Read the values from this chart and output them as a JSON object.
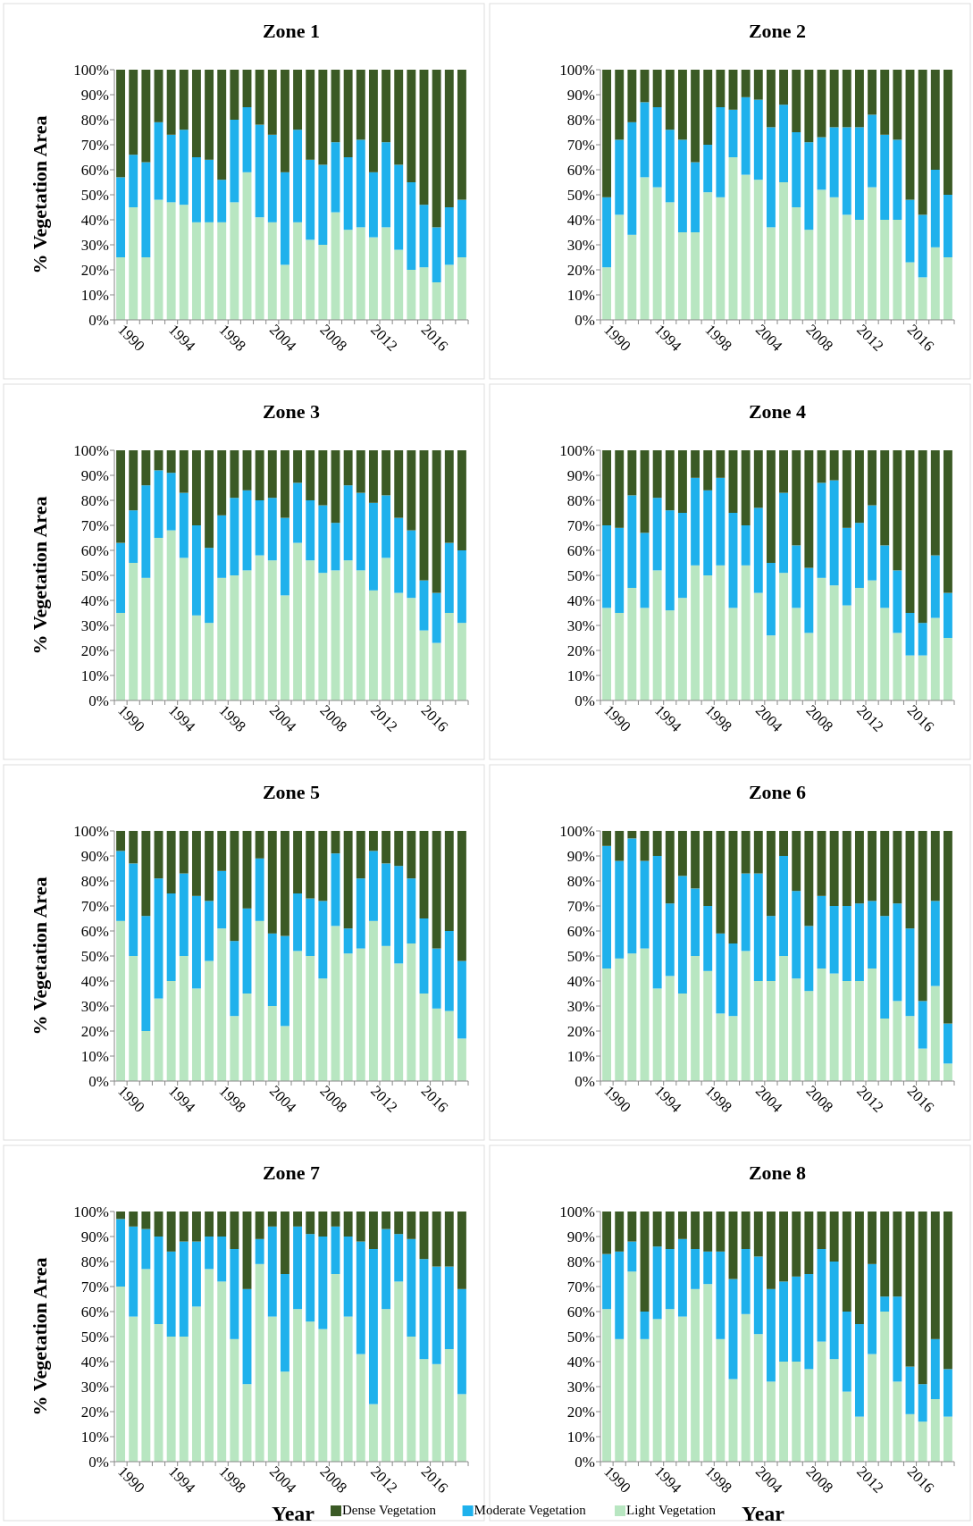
{
  "chart_data": [
    {
      "type": "bar",
      "stacked": true,
      "title": "Zone 1",
      "ylabel": "% Vegetation Area",
      "categories": [
        "1990",
        null,
        null,
        null,
        "1994",
        null,
        null,
        null,
        "1998",
        null,
        null,
        null,
        "2004",
        null,
        null,
        null,
        "2008",
        null,
        null,
        null,
        "2012",
        null,
        null,
        null,
        "2016",
        null,
        null,
        null
      ],
      "ylim": [
        0,
        100
      ],
      "yticks": [
        {
          "value": 0,
          "label": "0%"
        },
        {
          "value": 10,
          "label": "10%"
        },
        {
          "value": 20,
          "label": "20%"
        },
        {
          "value": 30,
          "label": "30%"
        },
        {
          "value": 40,
          "label": "40%"
        },
        {
          "value": 50,
          "label": "50%"
        },
        {
          "value": 60,
          "label": "60%"
        },
        {
          "value": 70,
          "label": "70%"
        },
        {
          "value": 80,
          "label": "80%"
        },
        {
          "value": 90,
          "label": "90%"
        },
        {
          "value": 100,
          "label": "100%"
        }
      ],
      "series": [
        {
          "color": "#b8e6c1",
          "values": [
            25,
            45,
            25,
            48,
            47,
            46,
            39,
            39,
            39,
            47,
            59,
            41,
            39,
            22,
            39,
            32,
            30,
            43,
            36,
            37,
            33,
            37,
            28,
            20,
            21,
            15,
            22,
            25
          ]
        },
        {
          "color": "#1fb1ec",
          "values": [
            32,
            21,
            38,
            31,
            27,
            30,
            26,
            25,
            17,
            33,
            26,
            37,
            35,
            37,
            37,
            32,
            32,
            28,
            29,
            35,
            26,
            34,
            34,
            35,
            25,
            22,
            23,
            23
          ]
        },
        {
          "color": "#3b5a25",
          "values": [
            43,
            34,
            37,
            21,
            26,
            24,
            35,
            36,
            44,
            20,
            15,
            22,
            26,
            41,
            24,
            36,
            38,
            29,
            35,
            28,
            41,
            29,
            38,
            45,
            54,
            63,
            55,
            52
          ]
        }
      ]
    },
    {
      "type": "bar",
      "stacked": true,
      "title": "Zone 2",
      "categories": [
        "1990",
        null,
        null,
        null,
        "1994",
        null,
        null,
        null,
        "1998",
        null,
        null,
        null,
        "2004",
        null,
        null,
        null,
        "2008",
        null,
        null,
        null,
        "2012",
        null,
        null,
        null,
        "2016",
        null,
        null,
        null
      ],
      "ylim": [
        0,
        100
      ],
      "yticks": [
        {
          "value": 0,
          "label": "0%"
        },
        {
          "value": 10,
          "label": "10%"
        },
        {
          "value": 20,
          "label": "20%"
        },
        {
          "value": 30,
          "label": "30%"
        },
        {
          "value": 40,
          "label": "40%"
        },
        {
          "value": 50,
          "label": "50%"
        },
        {
          "value": 60,
          "label": "60%"
        },
        {
          "value": 70,
          "label": "70%"
        },
        {
          "value": 80,
          "label": "80%"
        },
        {
          "value": 90,
          "label": "90%"
        },
        {
          "value": 100,
          "label": "100%"
        }
      ],
      "series": [
        {
          "color": "#b8e6c1",
          "values": [
            21,
            42,
            34,
            57,
            53,
            47,
            35,
            35,
            51,
            49,
            65,
            58,
            56,
            37,
            55,
            45,
            36,
            52,
            49,
            42,
            40,
            53,
            40,
            40,
            23,
            17,
            29,
            25
          ]
        },
        {
          "color": "#1fb1ec",
          "values": [
            28,
            30,
            45,
            30,
            32,
            29,
            37,
            28,
            19,
            36,
            19,
            31,
            32,
            40,
            31,
            30,
            35,
            21,
            28,
            35,
            37,
            29,
            34,
            32,
            25,
            25,
            31,
            25
          ]
        },
        {
          "color": "#3b5a25",
          "values": [
            51,
            28,
            21,
            13,
            15,
            24,
            28,
            37,
            30,
            15,
            16,
            11,
            12,
            23,
            14,
            25,
            29,
            27,
            23,
            23,
            23,
            18,
            26,
            28,
            52,
            58,
            40,
            50
          ]
        }
      ]
    },
    {
      "type": "bar",
      "stacked": true,
      "title": "Zone 3",
      "ylabel": "% Vegetation Area",
      "categories": [
        "1990",
        null,
        null,
        null,
        "1994",
        null,
        null,
        null,
        "1998",
        null,
        null,
        null,
        "2004",
        null,
        null,
        null,
        "2008",
        null,
        null,
        null,
        "2012",
        null,
        null,
        null,
        "2016",
        null,
        null,
        null
      ],
      "ylim": [
        0,
        100
      ],
      "yticks": [
        {
          "value": 0,
          "label": "0%"
        },
        {
          "value": 10,
          "label": "10%"
        },
        {
          "value": 20,
          "label": "20%"
        },
        {
          "value": 30,
          "label": "30%"
        },
        {
          "value": 40,
          "label": "40%"
        },
        {
          "value": 50,
          "label": "50%"
        },
        {
          "value": 60,
          "label": "60%"
        },
        {
          "value": 70,
          "label": "70%"
        },
        {
          "value": 80,
          "label": "80%"
        },
        {
          "value": 90,
          "label": "90%"
        },
        {
          "value": 100,
          "label": "100%"
        }
      ],
      "series": [
        {
          "color": "#b8e6c1",
          "values": [
            35,
            55,
            49,
            65,
            68,
            57,
            34,
            31,
            49,
            50,
            52,
            58,
            56,
            42,
            63,
            56,
            51,
            52,
            56,
            52,
            44,
            57,
            43,
            41,
            28,
            23,
            35,
            31
          ]
        },
        {
          "color": "#1fb1ec",
          "values": [
            28,
            21,
            37,
            27,
            23,
            26,
            36,
            30,
            25,
            31,
            32,
            22,
            25,
            31,
            24,
            24,
            27,
            19,
            30,
            31,
            35,
            25,
            30,
            27,
            20,
            20,
            28,
            29
          ]
        },
        {
          "color": "#3b5a25",
          "values": [
            37,
            24,
            14,
            8,
            9,
            17,
            30,
            39,
            26,
            19,
            16,
            20,
            19,
            27,
            13,
            20,
            22,
            29,
            14,
            17,
            21,
            18,
            27,
            32,
            52,
            57,
            37,
            40
          ]
        }
      ]
    },
    {
      "type": "bar",
      "stacked": true,
      "title": "Zone 4",
      "categories": [
        "1990",
        null,
        null,
        null,
        "1994",
        null,
        null,
        null,
        "1998",
        null,
        null,
        null,
        "2004",
        null,
        null,
        null,
        "2008",
        null,
        null,
        null,
        "2012",
        null,
        null,
        null,
        "2016",
        null,
        null,
        null
      ],
      "ylim": [
        0,
        100
      ],
      "yticks": [
        {
          "value": 0,
          "label": "0%"
        },
        {
          "value": 10,
          "label": "10%"
        },
        {
          "value": 20,
          "label": "20%"
        },
        {
          "value": 30,
          "label": "30%"
        },
        {
          "value": 40,
          "label": "40%"
        },
        {
          "value": 50,
          "label": "50%"
        },
        {
          "value": 60,
          "label": "60%"
        },
        {
          "value": 70,
          "label": "70%"
        },
        {
          "value": 80,
          "label": "80%"
        },
        {
          "value": 90,
          "label": "90%"
        },
        {
          "value": 100,
          "label": "100%"
        }
      ],
      "series": [
        {
          "color": "#b8e6c1",
          "values": [
            37,
            35,
            45,
            37,
            52,
            36,
            41,
            54,
            50,
            54,
            37,
            54,
            43,
            26,
            51,
            37,
            27,
            49,
            46,
            38,
            45,
            48,
            37,
            27,
            18,
            18,
            33,
            25
          ]
        },
        {
          "color": "#1fb1ec",
          "values": [
            33,
            34,
            37,
            30,
            29,
            40,
            34,
            35,
            34,
            35,
            38,
            16,
            34,
            29,
            32,
            25,
            26,
            38,
            42,
            31,
            26,
            30,
            25,
            25,
            17,
            13,
            25,
            18
          ]
        },
        {
          "color": "#3b5a25",
          "values": [
            30,
            31,
            18,
            33,
            19,
            24,
            25,
            11,
            16,
            11,
            25,
            30,
            23,
            45,
            17,
            38,
            47,
            13,
            12,
            31,
            29,
            22,
            38,
            48,
            65,
            69,
            42,
            57
          ]
        }
      ]
    },
    {
      "type": "bar",
      "stacked": true,
      "title": "Zone 5",
      "ylabel": "% Vegetation Area",
      "categories": [
        "1990",
        null,
        null,
        null,
        "1994",
        null,
        null,
        null,
        "1998",
        null,
        null,
        null,
        "2004",
        null,
        null,
        null,
        "2008",
        null,
        null,
        null,
        "2012",
        null,
        null,
        null,
        "2016",
        null,
        null,
        null
      ],
      "ylim": [
        0,
        100
      ],
      "yticks": [
        {
          "value": 0,
          "label": "0%"
        },
        {
          "value": 10,
          "label": "10%"
        },
        {
          "value": 20,
          "label": "20%"
        },
        {
          "value": 30,
          "label": "30%"
        },
        {
          "value": 40,
          "label": "40%"
        },
        {
          "value": 50,
          "label": "50%"
        },
        {
          "value": 60,
          "label": "60%"
        },
        {
          "value": 70,
          "label": "70%"
        },
        {
          "value": 80,
          "label": "80%"
        },
        {
          "value": 90,
          "label": "90%"
        },
        {
          "value": 100,
          "label": "100%"
        }
      ],
      "series": [
        {
          "color": "#b8e6c1",
          "values": [
            64,
            50,
            20,
            33,
            40,
            50,
            37,
            48,
            61,
            26,
            35,
            64,
            30,
            22,
            52,
            50,
            41,
            62,
            51,
            53,
            64,
            54,
            47,
            55,
            35,
            29,
            28,
            17
          ]
        },
        {
          "color": "#1fb1ec",
          "values": [
            28,
            37,
            46,
            48,
            35,
            33,
            37,
            24,
            23,
            30,
            34,
            25,
            29,
            36,
            23,
            23,
            31,
            29,
            10,
            28,
            28,
            33,
            39,
            26,
            30,
            24,
            32,
            31
          ]
        },
        {
          "color": "#3b5a25",
          "values": [
            8,
            13,
            34,
            19,
            25,
            17,
            26,
            28,
            16,
            44,
            31,
            11,
            41,
            42,
            25,
            27,
            28,
            9,
            39,
            19,
            8,
            13,
            14,
            19,
            35,
            47,
            40,
            52
          ]
        }
      ]
    },
    {
      "type": "bar",
      "stacked": true,
      "title": "Zone 6",
      "categories": [
        "1990",
        null,
        null,
        null,
        "1994",
        null,
        null,
        null,
        "1998",
        null,
        null,
        null,
        "2004",
        null,
        null,
        null,
        "2008",
        null,
        null,
        null,
        "2012",
        null,
        null,
        null,
        "2016",
        null,
        null,
        null
      ],
      "ylim": [
        0,
        100
      ],
      "yticks": [
        {
          "value": 0,
          "label": "0%"
        },
        {
          "value": 10,
          "label": "10%"
        },
        {
          "value": 20,
          "label": "20%"
        },
        {
          "value": 30,
          "label": "30%"
        },
        {
          "value": 40,
          "label": "40%"
        },
        {
          "value": 50,
          "label": "50%"
        },
        {
          "value": 60,
          "label": "60%"
        },
        {
          "value": 70,
          "label": "70%"
        },
        {
          "value": 80,
          "label": "80%"
        },
        {
          "value": 90,
          "label": "90%"
        },
        {
          "value": 100,
          "label": "100%"
        }
      ],
      "series": [
        {
          "color": "#b8e6c1",
          "values": [
            45,
            49,
            51,
            53,
            37,
            42,
            35,
            50,
            44,
            27,
            26,
            52,
            40,
            40,
            50,
            41,
            36,
            45,
            43,
            40,
            40,
            45,
            25,
            32,
            26,
            13,
            38,
            7
          ]
        },
        {
          "color": "#1fb1ec",
          "values": [
            49,
            39,
            46,
            35,
            53,
            29,
            47,
            27,
            26,
            32,
            29,
            31,
            43,
            26,
            40,
            35,
            26,
            29,
            27,
            30,
            31,
            27,
            41,
            39,
            35,
            19,
            34,
            16
          ]
        },
        {
          "color": "#3b5a25",
          "values": [
            6,
            12,
            3,
            12,
            10,
            29,
            18,
            23,
            30,
            41,
            45,
            17,
            17,
            34,
            10,
            24,
            38,
            26,
            30,
            30,
            29,
            28,
            34,
            29,
            39,
            68,
            28,
            77
          ]
        }
      ]
    },
    {
      "type": "bar",
      "stacked": true,
      "title": "Zone 7",
      "ylabel": "% Vegetation Area",
      "xlabel": "Year",
      "legend": "bottom",
      "categories": [
        "1990",
        null,
        null,
        null,
        "1994",
        null,
        null,
        null,
        "1998",
        null,
        null,
        null,
        "2004",
        null,
        null,
        null,
        "2008",
        null,
        null,
        null,
        "2012",
        null,
        null,
        null,
        "2016",
        null,
        null,
        null
      ],
      "ylim": [
        0,
        100
      ],
      "yticks": [
        {
          "value": 0,
          "label": "0%"
        },
        {
          "value": 10,
          "label": "10%"
        },
        {
          "value": 20,
          "label": "20%"
        },
        {
          "value": 30,
          "label": "30%"
        },
        {
          "value": 40,
          "label": "40%"
        },
        {
          "value": 50,
          "label": "50%"
        },
        {
          "value": 60,
          "label": "60%"
        },
        {
          "value": 70,
          "label": "70%"
        },
        {
          "value": 80,
          "label": "80%"
        },
        {
          "value": 90,
          "label": "90%"
        },
        {
          "value": 100,
          "label": "100%"
        }
      ],
      "series": [
        {
          "name": "Light Vegetation",
          "color": "#b8e6c1",
          "values": [
            70,
            58,
            77,
            55,
            50,
            50,
            62,
            77,
            72,
            49,
            31,
            79,
            58,
            36,
            61,
            56,
            53,
            75,
            58,
            43,
            23,
            61,
            72,
            50,
            41,
            39,
            45,
            27
          ]
        },
        {
          "name": "Moderate Vegetation",
          "color": "#1fb1ec",
          "values": [
            27,
            36,
            16,
            35,
            34,
            38,
            26,
            13,
            18,
            36,
            38,
            10,
            36,
            39,
            33,
            35,
            37,
            19,
            32,
            45,
            62,
            32,
            19,
            39,
            40,
            39,
            33,
            42
          ]
        },
        {
          "name": "Dense Vegetation",
          "color": "#3b5a25",
          "values": [
            3,
            6,
            7,
            10,
            16,
            12,
            12,
            10,
            10,
            15,
            31,
            11,
            6,
            25,
            6,
            9,
            10,
            6,
            10,
            12,
            15,
            7,
            9,
            11,
            19,
            22,
            22,
            31
          ]
        }
      ]
    },
    {
      "type": "bar",
      "stacked": true,
      "title": "Zone 8",
      "xlabel": "Year",
      "categories": [
        "1990",
        null,
        null,
        null,
        "1994",
        null,
        null,
        null,
        "1998",
        null,
        null,
        null,
        "2004",
        null,
        null,
        null,
        "2008",
        null,
        null,
        null,
        "2012",
        null,
        null,
        null,
        "2016",
        null,
        null,
        null
      ],
      "ylim": [
        0,
        100
      ],
      "yticks": [
        {
          "value": 0,
          "label": "0%"
        },
        {
          "value": 10,
          "label": "10%"
        },
        {
          "value": 20,
          "label": "20%"
        },
        {
          "value": 30,
          "label": "30%"
        },
        {
          "value": 40,
          "label": "40%"
        },
        {
          "value": 50,
          "label": "50%"
        },
        {
          "value": 60,
          "label": "60%"
        },
        {
          "value": 70,
          "label": "70%"
        },
        {
          "value": 80,
          "label": "80%"
        },
        {
          "value": 90,
          "label": "90%"
        },
        {
          "value": 100,
          "label": "100%"
        }
      ],
      "series": [
        {
          "color": "#b8e6c1",
          "values": [
            61,
            49,
            76,
            49,
            57,
            61,
            58,
            69,
            71,
            49,
            33,
            59,
            51,
            32,
            40,
            40,
            37,
            48,
            41,
            28,
            18,
            43,
            60,
            32,
            19,
            16,
            25,
            18
          ]
        },
        {
          "color": "#1fb1ec",
          "values": [
            22,
            35,
            12,
            11,
            29,
            24,
            31,
            16,
            13,
            35,
            40,
            26,
            31,
            37,
            32,
            34,
            38,
            37,
            39,
            32,
            37,
            36,
            6,
            34,
            19,
            15,
            24,
            19
          ]
        },
        {
          "color": "#3b5a25",
          "values": [
            17,
            16,
            12,
            40,
            14,
            15,
            11,
            15,
            16,
            16,
            27,
            15,
            18,
            31,
            28,
            26,
            25,
            15,
            20,
            40,
            45,
            21,
            34,
            34,
            62,
            69,
            51,
            63
          ]
        }
      ]
    }
  ]
}
